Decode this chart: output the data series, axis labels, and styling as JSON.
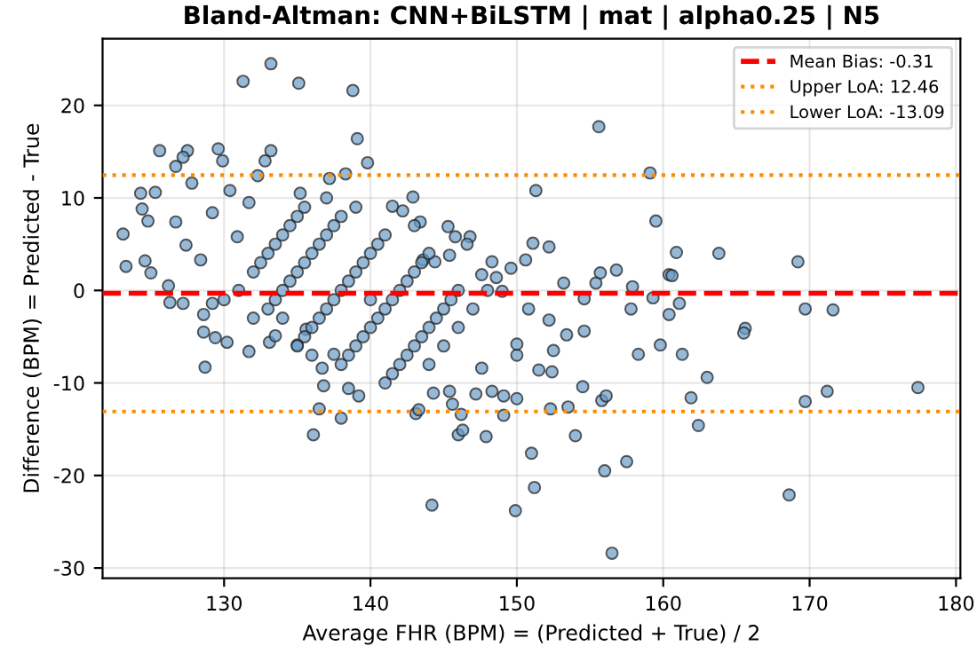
{
  "chart_data": {
    "type": "scatter",
    "title": "Bland-Altman: CNN+BiLSTM | mat | alpha0.25 | N5",
    "xlabel": "Average FHR (BPM) = (Predicted + True) / 2",
    "ylabel": "Difference (BPM) = Predicted - True",
    "series": [
      {
        "color": "#6a9bc8",
        "x": [
          133.2,
          131.3,
          135.1,
          138.8,
          139.1,
          139.8,
          125.6,
          127.5,
          127.2,
          126.7,
          129.6,
          129.9,
          133.2,
          132.8,
          132.3,
          127.8,
          124.3,
          125.3,
          130.4,
          135.2,
          137.2,
          138.3,
          124.4,
          124.8,
          126.7,
          123.1,
          124.6,
          123.3,
          125.0,
          129.2,
          131.7,
          130.9,
          127.4,
          128.4,
          126.2,
          126.3,
          127.2,
          128.6,
          129.2,
          155.6,
          159.1,
          151.3,
          159.5,
          142.9,
          142.2,
          141.5,
          143.4,
          145.3,
          146.8,
          145.8,
          146.6,
          151.1,
          152.2,
          150.6,
          148.3,
          149.6,
          148.6,
          147.6,
          153.2,
          155.7,
          156.8,
          155.4,
          157.9,
          160.4,
          157.8,
          159.3,
          160.4,
          144.4,
          143.6,
          145.4,
          150.8,
          152.2,
          154.6,
          149.0,
          160.9,
          163.8,
          169.2,
          160.6,
          161.1,
          169.7,
          171.6,
          165.6,
          165.5,
          159.8,
          161.3,
          163.0,
          161.9,
          162.4,
          168.6,
          169.7,
          171.2,
          177.4,
          128.7,
          128.6,
          129.4,
          130.2,
          131.7,
          133.1,
          133.5,
          135.0,
          136.7,
          136.8,
          137.5,
          138.5,
          139.2,
          136.5,
          138.0,
          136.1,
          135.6,
          144.2,
          149.9,
          156.5,
          151.0,
          151.2,
          156.0,
          157.5,
          154.0,
          147.9,
          146.0,
          146.3,
          146.2,
          143.1,
          143.3,
          145.6,
          149.1,
          152.3,
          153.5,
          155.8,
          156.1,
          150.0,
          149.1,
          148.3,
          147.2,
          145.4,
          144.3,
          154.5,
          158.3,
          151.5,
          152.4,
          152.5,
          147.6,
          150.0,
          153.4,
          154.6,
          150.0,
          135.0,
          135.5,
          136.0,
          136.5,
          137.0,
          137.5,
          138.0,
          138.5,
          139.0,
          139.5,
          140.0,
          140.5,
          138.0,
          138.5,
          139.0,
          139.5,
          140.0,
          140.5,
          141.0,
          141.5,
          142.0,
          142.5,
          143.0,
          143.5,
          144.0,
          141.0,
          141.5,
          142.0,
          142.5,
          143.0,
          143.5,
          144.0,
          144.5,
          145.0,
          145.5,
          146.0,
          133.0,
          133.5,
          134.0,
          134.5,
          135.0,
          135.5,
          136.0,
          136.5,
          137.0,
          137.5,
          138.0,
          132.0,
          132.5,
          133.0,
          133.5,
          134.0,
          134.5,
          135.0,
          135.5,
          144.0,
          145.0,
          146.0,
          147.0,
          148.0,
          131.0,
          130.0,
          132.0,
          134.0,
          140.0,
          141.0,
          143.0,
          136.0,
          139.0,
          137.0
        ],
        "values": [
          24.5,
          22.6,
          22.4,
          21.6,
          16.4,
          13.8,
          15.1,
          15.1,
          14.4,
          13.4,
          15.3,
          14.0,
          15.1,
          14.0,
          12.4,
          11.6,
          10.5,
          10.6,
          10.8,
          10.5,
          12.1,
          12.6,
          8.8,
          7.5,
          7.4,
          6.1,
          3.2,
          2.6,
          1.9,
          8.4,
          9.5,
          5.8,
          4.9,
          3.3,
          0.5,
          -1.3,
          -1.4,
          -2.6,
          -1.4,
          17.7,
          12.7,
          10.8,
          7.5,
          10.1,
          8.6,
          9.1,
          7.4,
          6.9,
          5.8,
          5.8,
          5.0,
          5.1,
          4.7,
          3.3,
          3.1,
          2.4,
          1.4,
          1.7,
          0.8,
          1.9,
          2.2,
          0.8,
          0.4,
          1.7,
          -2.0,
          -0.8,
          -2.6,
          3.1,
          3.3,
          3.8,
          -2.0,
          -3.2,
          -0.9,
          -0.1,
          4.1,
          4.0,
          3.1,
          1.6,
          -1.4,
          -2.0,
          -2.1,
          -4.1,
          -4.6,
          -5.9,
          -6.9,
          -9.4,
          -11.6,
          -14.6,
          -22.1,
          -12.0,
          -10.9,
          -10.5,
          -8.3,
          -4.5,
          -5.1,
          -5.6,
          -6.6,
          -5.6,
          -4.9,
          -5.9,
          -8.4,
          -10.3,
          -6.9,
          -10.6,
          -11.4,
          -12.8,
          -13.8,
          -15.6,
          -4.2,
          -23.2,
          -23.8,
          -28.4,
          -17.6,
          -21.3,
          -19.5,
          -18.5,
          -15.7,
          -15.8,
          -15.6,
          -15.1,
          -13.4,
          -13.3,
          -12.9,
          -12.3,
          -13.5,
          -12.8,
          -12.6,
          -11.9,
          -11.4,
          -11.7,
          -11.4,
          -10.9,
          -11.2,
          -10.9,
          -11.1,
          -10.4,
          -6.9,
          -8.6,
          -8.8,
          -6.5,
          -8.4,
          -7.0,
          -4.8,
          -4.4,
          -5.8,
          -6,
          -5,
          -4,
          -3,
          -2,
          -1,
          0,
          1,
          2,
          3,
          4,
          5,
          -8,
          -7,
          -6,
          -5,
          -4,
          -3,
          -2,
          -1,
          0,
          1,
          2,
          3,
          4,
          -10,
          -9,
          -8,
          -7,
          -6,
          -5,
          -4,
          -3,
          -2,
          -1,
          0,
          -2,
          -1,
          0,
          1,
          2,
          3,
          4,
          5,
          6,
          7,
          8,
          2,
          3,
          4,
          5,
          6,
          7,
          8,
          9,
          -8,
          -6,
          -4,
          -2,
          0,
          0,
          -1,
          -3,
          -3,
          -1,
          6,
          7,
          -7,
          9,
          10
        ]
      }
    ],
    "ref_lines": [
      {
        "axis": "y",
        "value": -0.31,
        "label": "Mean Bias: -0.31",
        "color": "#ff0000",
        "line_style": "dashed"
      },
      {
        "axis": "y",
        "value": 12.46,
        "label": "Upper LoA: 12.46",
        "color": "#ff8c00",
        "line_style": "dotted"
      },
      {
        "axis": "y",
        "value": -13.09,
        "label": "Lower LoA: -13.09",
        "color": "#ff8c00",
        "line_style": "dotted"
      }
    ],
    "xlim": [
      121.7,
      180.3
    ],
    "ylim": [
      -31.1,
      27.2
    ],
    "xticks": [
      130,
      140,
      150,
      160,
      170,
      180
    ],
    "yticks": [
      -30,
      -20,
      -10,
      0,
      10,
      20
    ],
    "grid": true,
    "legend": "top right",
    "marker": "circle"
  }
}
